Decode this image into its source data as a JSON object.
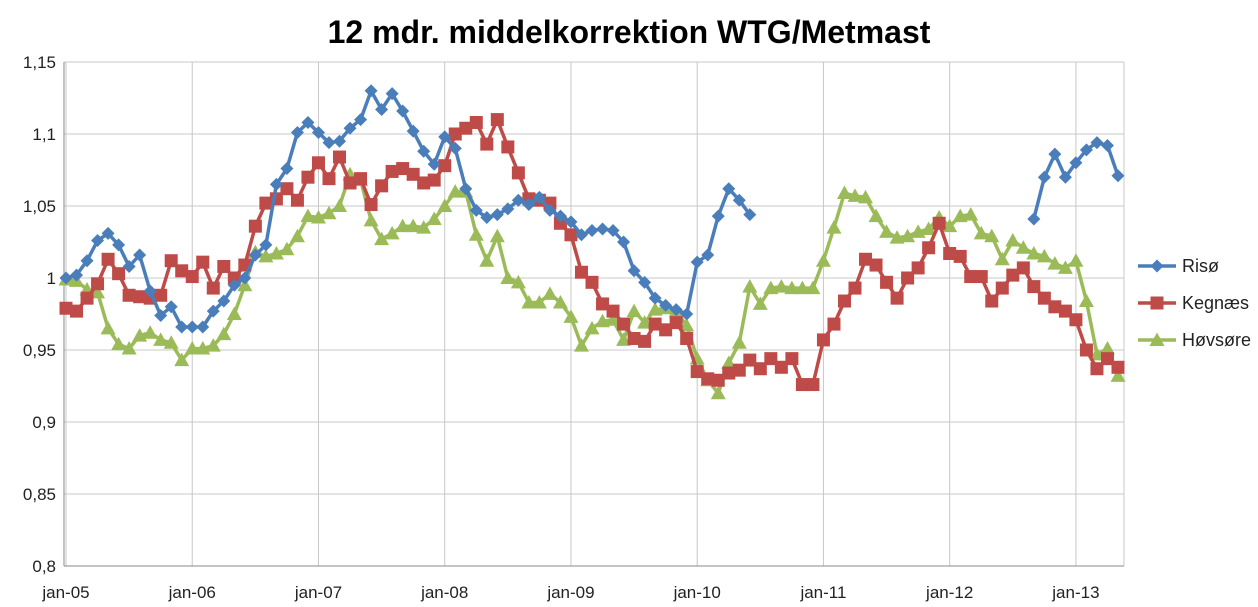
{
  "chart_data": {
    "type": "line",
    "title": "12 mdr. middelkorrektion WTG/Metmast",
    "xlabel": "",
    "ylabel": "",
    "ylim": [
      0.8,
      1.15
    ],
    "yticks": [
      "0,8",
      "0,85",
      "0,9",
      "0,95",
      "1",
      "1,05",
      "1,1",
      "1,15"
    ],
    "xticks": [
      "jan-05",
      "jan-06",
      "jan-07",
      "jan-08",
      "jan-09",
      "jan-10",
      "jan-11",
      "jan-12",
      "jan-13"
    ],
    "x_start": "jan-05",
    "x_step": "1 month",
    "grid": true,
    "legend_position": "right",
    "series": [
      {
        "name": "Risø",
        "color": "#4a7ebb",
        "marker": "diamond",
        "values": [
          1.0,
          1.002,
          1.012,
          1.026,
          1.031,
          1.023,
          1.008,
          1.016,
          0.991,
          0.974,
          0.98,
          0.966,
          0.966,
          0.966,
          0.977,
          0.984,
          0.995,
          1.0,
          1.016,
          1.023,
          1.065,
          1.076,
          1.101,
          1.108,
          1.101,
          1.094,
          1.095,
          1.104,
          1.11,
          1.13,
          1.117,
          1.128,
          1.116,
          1.102,
          1.088,
          1.079,
          1.098,
          1.09,
          1.062,
          1.047,
          1.042,
          1.044,
          1.048,
          1.054,
          1.051,
          1.056,
          1.047,
          1.043,
          1.039,
          1.03,
          1.033,
          1.034,
          1.033,
          1.025,
          1.005,
          0.997,
          0.986,
          0.981,
          0.978,
          0.975,
          1.011,
          1.016,
          1.043,
          1.062,
          1.054,
          1.044,
          null,
          null,
          null,
          null,
          null,
          null,
          null,
          null,
          null,
          null,
          null,
          null,
          null,
          null,
          null,
          null,
          null,
          null,
          null,
          null,
          null,
          null,
          null,
          null,
          null,
          null,
          1.041,
          1.07,
          1.086,
          1.07,
          1.08,
          1.089,
          1.094,
          1.092,
          1.071
        ]
      },
      {
        "name": "Kegnæs",
        "color": "#be4b48",
        "marker": "square",
        "values": [
          0.979,
          0.977,
          0.986,
          0.996,
          1.013,
          1.003,
          0.988,
          0.987,
          0.986,
          0.988,
          1.012,
          1.005,
          1.001,
          1.011,
          0.993,
          1.008,
          1.0,
          1.009,
          1.036,
          1.052,
          1.055,
          1.062,
          1.054,
          1.07,
          1.08,
          1.069,
          1.084,
          1.066,
          1.069,
          1.051,
          1.064,
          1.074,
          1.076,
          1.072,
          1.066,
          1.068,
          1.078,
          1.1,
          1.104,
          1.108,
          1.093,
          1.11,
          1.091,
          1.073,
          1.055,
          1.054,
          1.052,
          1.038,
          1.03,
          1.004,
          0.997,
          0.982,
          0.977,
          0.968,
          0.958,
          0.956,
          0.968,
          0.964,
          0.969,
          0.958,
          0.935,
          0.93,
          0.929,
          0.934,
          0.936,
          0.943,
          0.937,
          0.944,
          0.938,
          0.944,
          0.926,
          0.926,
          0.957,
          0.968,
          0.984,
          0.993,
          1.013,
          1.009,
          0.997,
          0.986,
          1.0,
          1.007,
          1.021,
          1.038,
          1.017,
          1.015,
          1.001,
          1.001,
          0.984,
          0.993,
          1.002,
          1.007,
          0.994,
          0.986,
          0.98,
          0.977,
          0.971,
          0.95,
          0.937,
          0.944,
          0.938
        ]
      },
      {
        "name": "Høvsøre",
        "color": "#9bbb59",
        "marker": "triangle",
        "values": [
          0.999,
          0.998,
          0.992,
          0.99,
          0.965,
          0.954,
          0.951,
          0.96,
          0.962,
          0.957,
          0.955,
          0.943,
          0.951,
          0.951,
          0.953,
          0.961,
          0.975,
          0.995,
          1.018,
          1.015,
          1.017,
          1.02,
          1.029,
          1.043,
          1.042,
          1.045,
          1.05,
          1.072,
          1.068,
          1.04,
          1.027,
          1.031,
          1.036,
          1.036,
          1.035,
          1.041,
          1.05,
          1.06,
          1.06,
          1.03,
          1.012,
          1.029,
          1.0,
          0.997,
          0.983,
          0.983,
          0.989,
          0.983,
          0.973,
          0.953,
          0.965,
          0.97,
          0.971,
          0.957,
          0.977,
          0.969,
          0.978,
          0.979,
          0.977,
          0.967,
          0.944,
          0.929,
          0.92,
          0.941,
          0.955,
          0.994,
          0.982,
          0.993,
          0.994,
          0.993,
          0.993,
          0.993,
          1.012,
          1.035,
          1.059,
          1.057,
          1.056,
          1.043,
          1.032,
          1.028,
          1.029,
          1.032,
          1.034,
          1.042,
          1.036,
          1.043,
          1.044,
          1.031,
          1.029,
          1.013,
          1.026,
          1.021,
          1.017,
          1.015,
          1.01,
          1.007,
          1.012,
          0.984,
          0.947,
          0.951,
          0.932
        ]
      }
    ]
  }
}
